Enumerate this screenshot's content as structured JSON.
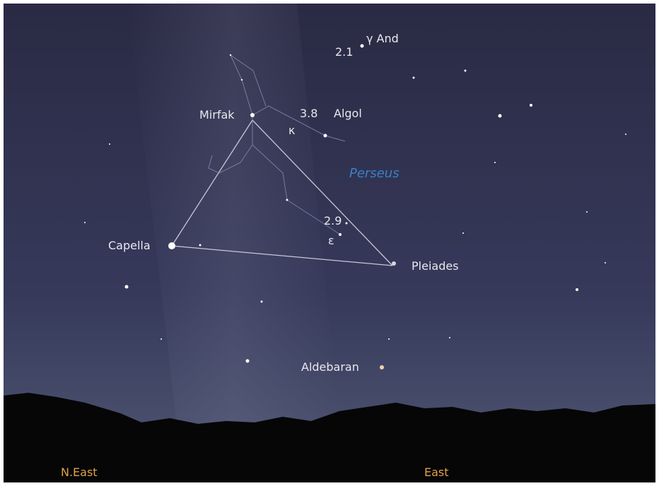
{
  "stars": {
    "gamma_and": {
      "label": "γ And",
      "magnitude": "2.1"
    },
    "mirfak": {
      "label": "Mirfak"
    },
    "algol": {
      "label": "Algol",
      "magnitude": "3.8",
      "kappa": "κ"
    },
    "constellation": "Perseus",
    "epsilon": {
      "label": "ε",
      "magnitude": "2.9"
    },
    "capella": {
      "label": "Capella"
    },
    "pleiades": {
      "label": "Pleiades"
    },
    "aldebaran": {
      "label": "Aldebaran"
    }
  },
  "directions": {
    "left": "N.East",
    "right": "East"
  }
}
